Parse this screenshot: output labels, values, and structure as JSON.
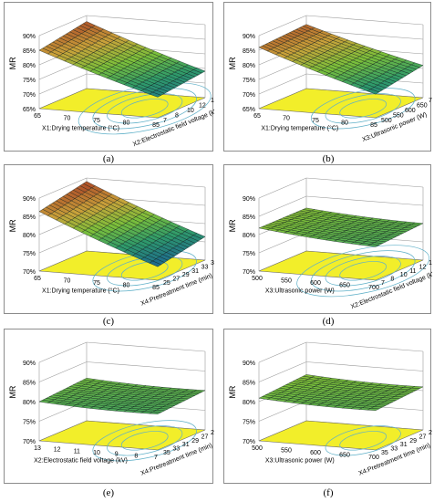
{
  "figure": {
    "background": "#ffffff",
    "surface_colors": [
      "#1c2b7a",
      "#1f6f8b",
      "#2f9a6a",
      "#7cbf3a",
      "#c9a23a",
      "#b0552a"
    ],
    "contour_fill": "#f2ee2a",
    "contour_line": "#5fb0c8"
  },
  "chart_data": [
    {
      "type": "surface",
      "caption": "(a)",
      "zlabel": "MR",
      "z_ticks": [
        "65%",
        "70%",
        "75%",
        "80%",
        "85%",
        "90%"
      ],
      "xlabel": "X1:Drying temperature (°C)",
      "x_ticks": [
        "65",
        "70",
        "75",
        "80",
        "85"
      ],
      "ylabel": "X2:Electrostatic field voltage (kV)",
      "y_ticks": [
        "7",
        "8",
        "10",
        "12",
        "13"
      ],
      "zlim": [
        0.65,
        0.9
      ],
      "corner_values": {
        "x_low_y_back": 0.88,
        "x_low_y_front": 0.85,
        "x_high_y_back": 0.75,
        "x_high_y_front": 0.73
      },
      "contour_ellipses": 4
    },
    {
      "type": "surface",
      "caption": "(b)",
      "zlabel": "MR",
      "z_ticks": [
        "65%",
        "70%",
        "75%",
        "80%",
        "85%",
        "90%"
      ],
      "xlabel": "X1:Drying temperature (°C)",
      "x_ticks": [
        "65",
        "70",
        "75",
        "80",
        "85"
      ],
      "ylabel": "X3:Ultrasonic power (W)",
      "y_ticks": [
        "500",
        "550",
        "600",
        "650",
        "700"
      ],
      "zlim": [
        0.65,
        0.9
      ],
      "corner_values": {
        "x_low_y_back": 0.87,
        "x_low_y_front": 0.86,
        "x_high_y_back": 0.77,
        "x_high_y_front": 0.74
      },
      "contour_ellipses": 3
    },
    {
      "type": "surface",
      "caption": "(c)",
      "zlabel": "MR",
      "z_ticks": [
        "70%",
        "75%",
        "80%",
        "85%",
        "90%"
      ],
      "xlabel": "X1:Drying temperature (°C)",
      "x_ticks": [
        "65",
        "70",
        "75",
        "80",
        "85"
      ],
      "ylabel": "X4:Pretreatment time (min)",
      "y_ticks": [
        "25",
        "27",
        "29",
        "31",
        "33",
        "35"
      ],
      "zlim": [
        0.68,
        0.9
      ],
      "corner_values": {
        "x_low_y_back": 0.89,
        "x_low_y_front": 0.86,
        "x_high_y_back": 0.76,
        "x_high_y_front": 0.73
      },
      "contour_ellipses": 3
    },
    {
      "type": "surface",
      "caption": "(d)",
      "zlabel": "MR",
      "z_ticks": [
        "70%",
        "75%",
        "80%",
        "85%",
        "90%"
      ],
      "xlabel": "X3:Ultrasonic power (W)",
      "x_ticks": [
        "500",
        "550",
        "600",
        "650",
        "700"
      ],
      "ylabel": "X2:Electrostatic field voltage (kV)",
      "y_ticks": [
        "7",
        "8",
        "10",
        "11",
        "12",
        "13"
      ],
      "zlim": [
        0.68,
        0.9
      ],
      "corner_values": {
        "x_low_y_back": 0.81,
        "x_low_y_front": 0.81,
        "x_high_y_back": 0.8,
        "x_high_y_front": 0.79
      },
      "contour_ellipses": 4
    },
    {
      "type": "surface",
      "caption": "(e)",
      "zlabel": "MR",
      "z_ticks": [
        "70%",
        "75%",
        "80%",
        "85%",
        "90%"
      ],
      "xlabel": "X2:Electrostatic field voltage (kV)",
      "x_ticks": [
        "13",
        "12",
        "11",
        "10",
        "9",
        "8",
        "7"
      ],
      "ylabel": "X4:Pretreatment time (min)",
      "y_ticks": [
        "35",
        "33",
        "31",
        "29",
        "27",
        "25"
      ],
      "zlim": [
        0.68,
        0.9
      ],
      "corner_values": {
        "x_low_y_back": 0.8,
        "x_low_y_front": 0.79,
        "x_high_y_back": 0.8,
        "x_high_y_front": 0.79
      },
      "contour_ellipses": 3
    },
    {
      "type": "surface",
      "caption": "(f)",
      "zlabel": "MR",
      "z_ticks": [
        "70%",
        "75%",
        "80%",
        "85%",
        "90%"
      ],
      "xlabel": "X3:Ultrasonic power (W)",
      "x_ticks": [
        "500",
        "550",
        "600",
        "650",
        "700"
      ],
      "ylabel": "X4:Pretreatment time (min)",
      "y_ticks": [
        "35",
        "33",
        "31",
        "29",
        "27",
        "25"
      ],
      "zlim": [
        0.68,
        0.9
      ],
      "corner_values": {
        "x_low_y_back": 0.81,
        "x_low_y_front": 0.8,
        "x_high_y_back": 0.81,
        "x_high_y_front": 0.8
      },
      "contour_ellipses": 2
    }
  ]
}
